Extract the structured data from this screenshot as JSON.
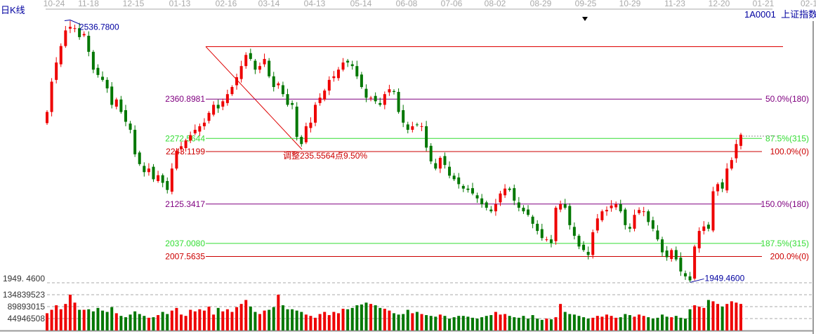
{
  "header": {
    "period_label": "日K线",
    "symbol_code": "1A0001",
    "symbol_name": "上证指数"
  },
  "chart_data": {
    "type": "candlestick",
    "x_ticks": [
      "10-24",
      "11-18",
      "12-15",
      "01-13",
      "02-16",
      "03-14",
      "04-13",
      "05-14",
      "06-08",
      "07-06",
      "08-02",
      "08-29",
      "09-25",
      "10-29",
      "11-23",
      "12-20",
      "01-21",
      "02-1"
    ],
    "price_axis": {
      "min": 1949.46,
      "max": 2536.78
    },
    "high_label": "2536.7800",
    "high_value": 2536.78,
    "low_label": "1949.4600",
    "low_value": 1949.46,
    "low_axis_label": "1949. 4600",
    "closes": [
      2332,
      2400,
      2443,
      2480,
      2515,
      2523,
      2520,
      2500,
      2507,
      2467,
      2427,
      2415,
      2404,
      2385,
      2348,
      2360,
      2332,
      2310,
      2292,
      2237,
      2215,
      2197,
      2205,
      2181,
      2190,
      2173,
      2157,
      2205,
      2245,
      2255,
      2268,
      2280,
      2292,
      2300,
      2308,
      2330,
      2348,
      2340,
      2356,
      2372,
      2388,
      2410,
      2435,
      2460,
      2451,
      2427,
      2435,
      2451,
      2412,
      2388,
      2396,
      2372,
      2348,
      2348,
      2276,
      2260,
      2300,
      2308,
      2348,
      2364,
      2380,
      2404,
      2412,
      2427,
      2443,
      2443,
      2435,
      2412,
      2388,
      2364,
      2364,
      2356,
      2348,
      2372,
      2383,
      2377,
      2332,
      2308,
      2292,
      2300,
      2303,
      2300,
      2252,
      2221,
      2205,
      2229,
      2213,
      2189,
      2181,
      2170,
      2160,
      2157,
      2149,
      2138,
      2125,
      2117,
      2109,
      2125,
      2149,
      2160,
      2157,
      2133,
      2117,
      2109,
      2101,
      2081,
      2065,
      2049,
      2046,
      2038,
      2117,
      2125,
      2117,
      2078,
      2054,
      2030,
      2022,
      2011,
      2062,
      2093,
      2109,
      2112,
      2122,
      2125,
      2109,
      2078,
      2070,
      2101,
      2112,
      2109,
      2085,
      2070,
      2046,
      2017,
      2006,
      2022,
      2001,
      1974,
      1963,
      1954,
      2030,
      2065,
      2075,
      2070,
      2154,
      2170,
      2160,
      2205,
      2224,
      2260,
      2281
    ],
    "volumes": [
      65000000,
      78000000,
      95000000,
      80000000,
      100000000,
      135000000,
      105000000,
      78000000,
      78000000,
      80000000,
      72000000,
      85000000,
      75000000,
      70000000,
      88000000,
      65000000,
      55000000,
      50000000,
      60000000,
      72000000,
      62000000,
      55000000,
      48000000,
      50000000,
      58000000,
      70000000,
      62000000,
      75000000,
      85000000,
      60000000,
      55000000,
      78000000,
      72000000,
      80000000,
      75000000,
      90000000,
      60000000,
      85000000,
      72000000,
      80000000,
      70000000,
      88000000,
      100000000,
      115000000,
      90000000,
      70000000,
      62000000,
      75000000,
      78000000,
      88000000,
      135000000,
      95000000,
      80000000,
      80000000,
      75000000,
      70000000,
      60000000,
      55000000,
      48000000,
      62000000,
      70000000,
      58000000,
      70000000,
      65000000,
      82000000,
      80000000,
      85000000,
      95000000,
      98000000,
      105000000,
      100000000,
      95000000,
      85000000,
      82000000,
      75000000,
      65000000,
      60000000,
      62000000,
      78000000,
      65000000,
      70000000,
      62000000,
      58000000,
      55000000,
      52000000,
      60000000,
      55000000,
      45000000,
      50000000,
      55000000,
      55000000,
      52000000,
      48000000,
      45000000,
      50000000,
      55000000,
      58000000,
      70000000,
      60000000,
      62000000,
      55000000,
      50000000,
      48000000,
      55000000,
      45000000,
      58000000,
      45000000,
      40000000,
      45000000,
      42000000,
      50000000,
      100000000,
      70000000,
      62000000,
      60000000,
      55000000,
      50000000,
      45000000,
      48000000,
      55000000,
      52000000,
      60000000,
      55000000,
      48000000,
      50000000,
      62000000,
      58000000,
      52000000,
      60000000,
      55000000,
      50000000,
      45000000,
      48000000,
      60000000,
      52000000,
      50000000,
      55000000,
      48000000,
      45000000,
      80000000,
      95000000,
      90000000,
      85000000,
      115000000,
      110000000,
      100000000,
      90000000,
      100000000,
      110000000,
      105000000,
      100000000
    ],
    "volume_ticks": [
      {
        "label": "134839523",
        "value": 134839523
      },
      {
        "label": "89893015",
        "value": 89893015
      },
      {
        "label": "44946508",
        "value": 44946508
      }
    ],
    "reference_high": 2478.68,
    "fib_levels": [
      {
        "value": 2360.8981,
        "label": "2360.8981",
        "ratio_label": "50.0%(180)",
        "color": "#800080"
      },
      {
        "value": 2272.5644,
        "label": "2272.5644",
        "ratio_label": "87.5%(315)",
        "color": "#33dd33"
      },
      {
        "value": 2243.1199,
        "label": "2243.1199",
        "ratio_label": "100.0%(0)",
        "color": "#cc0000"
      },
      {
        "value": 2125.3417,
        "label": "2125.3417",
        "ratio_label": "150.0%(180)",
        "color": "#800080"
      },
      {
        "value": 2037.008,
        "label": "2037.0080",
        "ratio_label": "187.5%(315)",
        "color": "#33dd33"
      },
      {
        "value": 2007.5635,
        "label": "2007.5635",
        "ratio_label": "200.0%(0)",
        "color": "#cc0000"
      }
    ],
    "adjustment_label": "调整235.5564点9.50%",
    "colors": {
      "up": "#ee0000",
      "down": "#007700",
      "axis": "#999999",
      "annotation": "#0000a0"
    }
  }
}
